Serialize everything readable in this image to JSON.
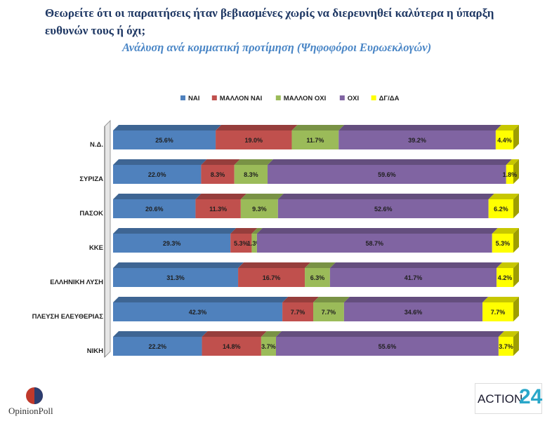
{
  "header": {
    "question": "Θεωρείτε ότι οι παραιτήσεις ήταν βεβιασμένες χωρίς να διερευνηθεί καλύτερα η ύπαρξη ευθυνών τους ή όχι;",
    "subtitle": "Ανάλυση ανά κομματική προτίμηση (Ψηφοφόροι Ευρωεκλογών)"
  },
  "logos": {
    "opinion_poll": "OpinionPoll",
    "action24": "ACTION 24"
  },
  "chart_data": {
    "type": "bar",
    "orientation": "horizontal",
    "stacked": "100%",
    "style": "3d",
    "legend_position": "top",
    "categories": [
      "Ν.Δ.",
      "ΣΥΡΙΖΑ",
      "ΠΑΣΟΚ",
      "ΚΚΕ",
      "ΕΛΛΗΝΙΚΗ ΛΥΣΗ",
      "ΠΛΕΥΣΗ ΕΛΕΥΘΕΡΙΑΣ",
      "ΝΙΚΗ"
    ],
    "series": [
      {
        "name": "ΝΑΙ",
        "color": "#4f81bd",
        "values": [
          25.6,
          22.0,
          20.6,
          29.3,
          31.3,
          42.3,
          22.2
        ]
      },
      {
        "name": "ΜΑΛΛΟΝ ΝΑΙ",
        "color": "#c0504d",
        "values": [
          19.0,
          8.3,
          11.3,
          5.3,
          16.7,
          7.7,
          14.8
        ]
      },
      {
        "name": "ΜΑΛΛΟΝ ΟΧΙ",
        "color": "#9bbb59",
        "values": [
          11.7,
          8.3,
          9.3,
          1.3,
          6.3,
          7.7,
          3.7
        ]
      },
      {
        "name": "ΟΧΙ",
        "color": "#8064a2",
        "values": [
          39.2,
          59.6,
          52.6,
          58.7,
          41.7,
          34.6,
          55.6
        ]
      },
      {
        "name": "ΔΓ/ΔΑ",
        "color": "#ffff00",
        "values": [
          4.4,
          1.8,
          6.2,
          5.3,
          4.2,
          7.7,
          3.7
        ]
      }
    ],
    "value_labels": [
      [
        "25.6%",
        "19.0%",
        "11.7%",
        "39.2%",
        "4.4%"
      ],
      [
        "22.0%",
        "8.3%",
        "8.3%",
        "59.6%",
        "1.8%"
      ],
      [
        "20.6%",
        "11.3%",
        "9.3%",
        "52.6%",
        "6.2%"
      ],
      [
        "29.3%",
        "5.3%",
        "1.3%",
        "58.7%",
        "5.3%"
      ],
      [
        "31.3%",
        "16.7%",
        "6.3%",
        "41.7%",
        "4.2%"
      ],
      [
        "42.3%",
        "7.7%",
        "7.7%",
        "34.6%",
        "7.7%"
      ],
      [
        "22.2%",
        "14.8%",
        "3.7%",
        "55.6%",
        "3.7%"
      ]
    ]
  }
}
